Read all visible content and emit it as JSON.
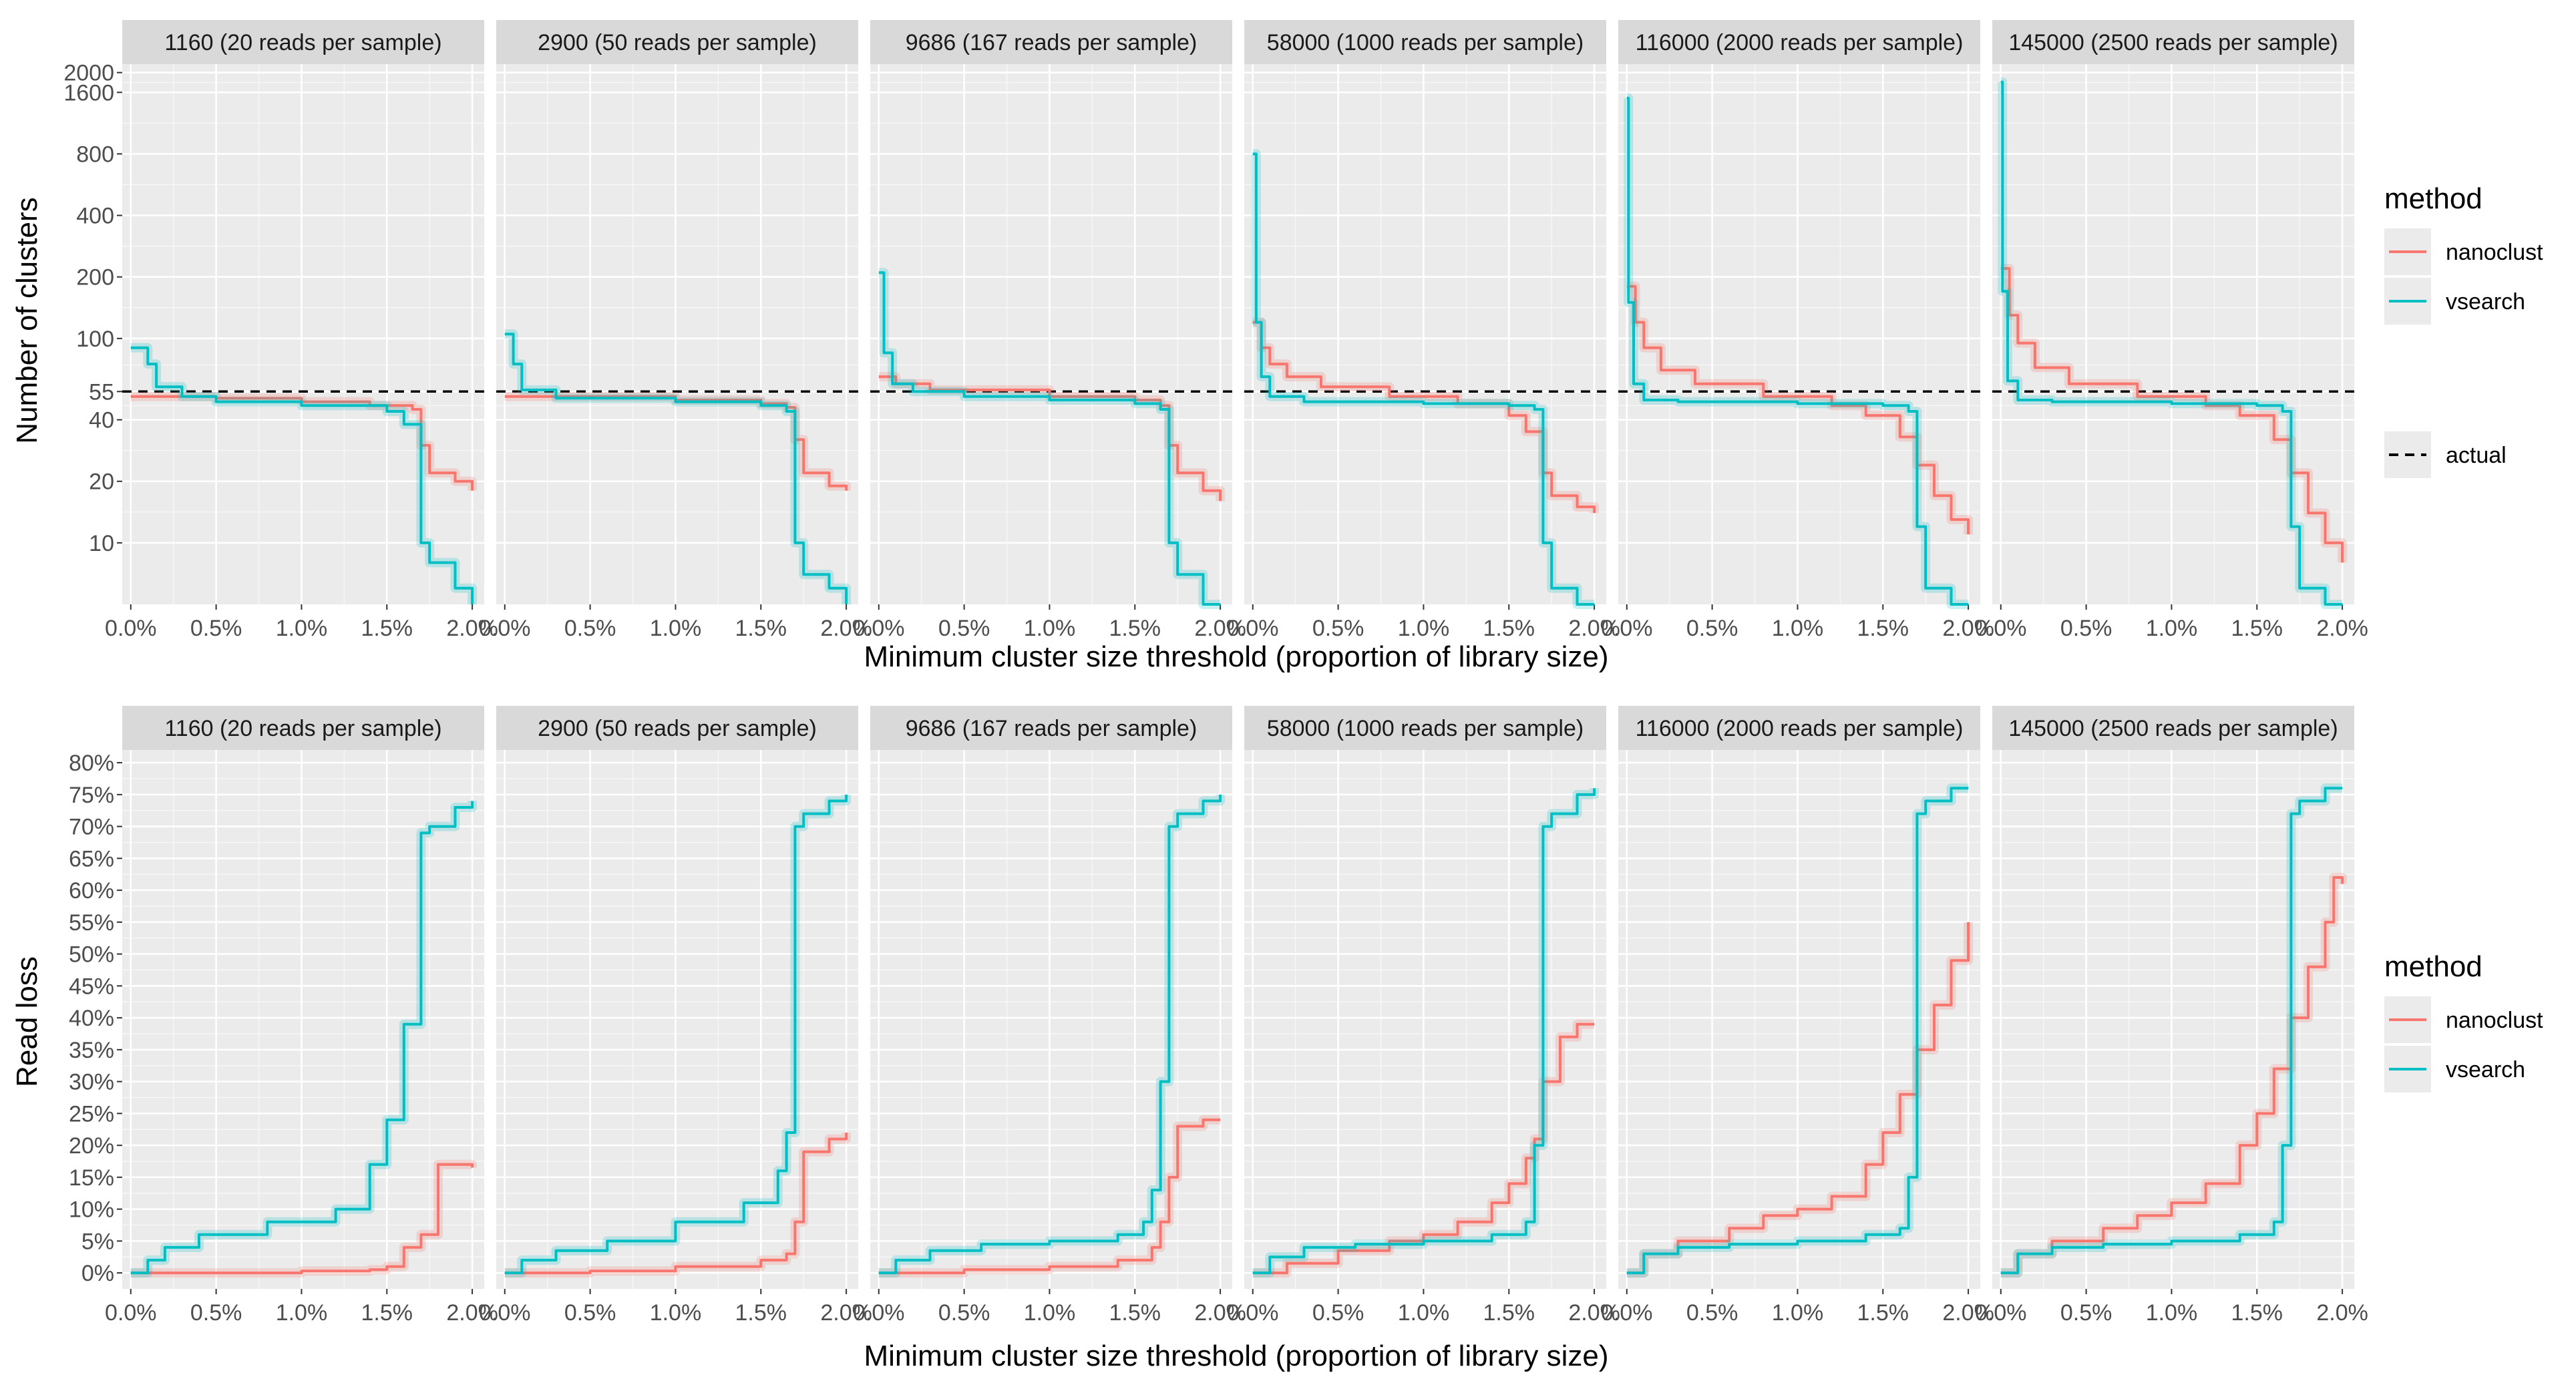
{
  "colors": {
    "nanoclust": "#F8766D",
    "vsearch": "#00BFC4",
    "panel_bg": "#EBEBEB",
    "strip_bg": "#D9D9D9",
    "grid": "#FFFFFF"
  },
  "legend": {
    "method_title": "method",
    "methods": [
      "nanoclust",
      "vsearch"
    ],
    "actual_label": "actual"
  },
  "chart_data": [
    {
      "type": "line",
      "title": "",
      "ylabel": "Number of clusters",
      "xlabel": "Minimum cluster size threshold (proportion of library size)",
      "y_scale": "log",
      "ylim": [
        5,
        2200
      ],
      "xlim": [
        -0.0005,
        0.0207
      ],
      "yticks": [
        10,
        20,
        40,
        55,
        100,
        200,
        400,
        800,
        1600,
        2000
      ],
      "ytick_labels": [
        "10",
        "20",
        "40",
        "55",
        "100",
        "200",
        "400",
        "800",
        "1600",
        "2000"
      ],
      "xticks": [
        0,
        0.005,
        0.01,
        0.015,
        0.02
      ],
      "xtick_labels": [
        "0.0%",
        "0.5%",
        "1.0%",
        "1.5%",
        "2.0%"
      ],
      "reference_line": {
        "name": "actual",
        "y": 55,
        "style": "dashed"
      },
      "facets": [
        {
          "label": "1160 (20 reads per sample)",
          "series": [
            {
              "name": "nanoclust",
              "x": [
                0,
                0.002,
                0.005,
                0.01,
                0.014,
                0.0165,
                0.017,
                0.0175,
                0.019,
                0.02
              ],
              "y": [
                52,
                52,
                51,
                49,
                47,
                45,
                30,
                22,
                20,
                18
              ]
            },
            {
              "name": "vsearch",
              "x": [
                0,
                0.001,
                0.0015,
                0.003,
                0.005,
                0.01,
                0.015,
                0.016,
                0.017,
                0.0175,
                0.019,
                0.02
              ],
              "y": [
                90,
                75,
                58,
                52,
                49,
                47,
                44,
                38,
                10,
                8,
                6,
                5
              ]
            }
          ]
        },
        {
          "label": "2900 (50 reads per sample)",
          "series": [
            {
              "name": "nanoclust",
              "x": [
                0,
                0.003,
                0.01,
                0.015,
                0.0165,
                0.017,
                0.0175,
                0.019,
                0.02
              ],
              "y": [
                52,
                52,
                50,
                48,
                46,
                32,
                22,
                19,
                18
              ]
            },
            {
              "name": "vsearch",
              "x": [
                0,
                0.0005,
                0.001,
                0.003,
                0.01,
                0.015,
                0.0165,
                0.017,
                0.0175,
                0.019,
                0.02
              ],
              "y": [
                105,
                75,
                56,
                51,
                49,
                47,
                44,
                10,
                7,
                6,
                5
              ]
            }
          ]
        },
        {
          "label": "9686 (167 reads per sample)",
          "series": [
            {
              "name": "nanoclust",
              "x": [
                0,
                0.001,
                0.003,
                0.01,
                0.015,
                0.0165,
                0.017,
                0.0175,
                0.019,
                0.02
              ],
              "y": [
                65,
                60,
                56,
                52,
                50,
                47,
                30,
                22,
                18,
                16
              ]
            },
            {
              "name": "vsearch",
              "x": [
                0,
                0.0003,
                0.0008,
                0.002,
                0.005,
                0.01,
                0.015,
                0.0165,
                0.017,
                0.0175,
                0.019,
                0.02
              ],
              "y": [
                210,
                85,
                60,
                55,
                52,
                50,
                48,
                45,
                10,
                7,
                5,
                5
              ]
            }
          ]
        },
        {
          "label": "58000 (1000 reads per sample)",
          "series": [
            {
              "name": "nanoclust",
              "x": [
                0,
                0.0005,
                0.001,
                0.002,
                0.004,
                0.008,
                0.012,
                0.015,
                0.016,
                0.017,
                0.0175,
                0.019,
                0.02
              ],
              "y": [
                120,
                90,
                75,
                65,
                58,
                52,
                48,
                42,
                35,
                22,
                17,
                15,
                14
              ]
            },
            {
              "name": "vsearch",
              "x": [
                0,
                0.0002,
                0.0005,
                0.001,
                0.003,
                0.01,
                0.015,
                0.0165,
                0.017,
                0.0175,
                0.019,
                0.02
              ],
              "y": [
                800,
                120,
                65,
                52,
                49,
                48,
                47,
                45,
                10,
                6,
                5,
                5
              ]
            }
          ]
        },
        {
          "label": "116000 (2000 reads per sample)",
          "series": [
            {
              "name": "nanoclust",
              "x": [
                0,
                0.0005,
                0.001,
                0.002,
                0.004,
                0.008,
                0.012,
                0.014,
                0.016,
                0.017,
                0.018,
                0.019,
                0.02
              ],
              "y": [
                180,
                120,
                90,
                70,
                60,
                52,
                47,
                42,
                33,
                24,
                17,
                13,
                11
              ]
            },
            {
              "name": "vsearch",
              "x": [
                0,
                0.0001,
                0.0004,
                0.001,
                0.003,
                0.01,
                0.015,
                0.0165,
                0.017,
                0.0175,
                0.019,
                0.02
              ],
              "y": [
                1500,
                150,
                60,
                50,
                49,
                48,
                47,
                44,
                12,
                6,
                5,
                5
              ]
            }
          ]
        },
        {
          "label": "145000 (2500 reads per sample)",
          "series": [
            {
              "name": "nanoclust",
              "x": [
                0,
                0.0005,
                0.001,
                0.002,
                0.004,
                0.008,
                0.012,
                0.014,
                0.016,
                0.017,
                0.018,
                0.019,
                0.02
              ],
              "y": [
                220,
                130,
                95,
                72,
                60,
                52,
                47,
                42,
                32,
                22,
                14,
                10,
                8
              ]
            },
            {
              "name": "vsearch",
              "x": [
                0,
                0.0001,
                0.0004,
                0.001,
                0.003,
                0.01,
                0.015,
                0.0165,
                0.017,
                0.0175,
                0.019,
                0.02
              ],
              "y": [
                1800,
                170,
                62,
                50,
                49,
                48,
                47,
                44,
                12,
                6,
                5,
                5
              ]
            }
          ]
        }
      ]
    },
    {
      "type": "line",
      "title": "",
      "ylabel": "Read loss",
      "xlabel": "Minimum cluster size threshold (proportion of library size)",
      "y_scale": "linear",
      "ylim": [
        -0.025,
        0.82
      ],
      "xlim": [
        -0.0005,
        0.0207
      ],
      "yticks": [
        0,
        0.05,
        0.1,
        0.15,
        0.2,
        0.25,
        0.3,
        0.35,
        0.4,
        0.45,
        0.5,
        0.55,
        0.6,
        0.65,
        0.7,
        0.75,
        0.8
      ],
      "ytick_labels": [
        "0%",
        "5%",
        "10%",
        "15%",
        "20%",
        "25%",
        "30%",
        "35%",
        "40%",
        "45%",
        "50%",
        "55%",
        "60%",
        "65%",
        "70%",
        "75%",
        "80%"
      ],
      "xticks": [
        0,
        0.005,
        0.01,
        0.015,
        0.02
      ],
      "xtick_labels": [
        "0.0%",
        "0.5%",
        "1.0%",
        "1.5%",
        "2.0%"
      ],
      "facets": [
        {
          "label": "1160 (20 reads per sample)",
          "series": [
            {
              "name": "nanoclust",
              "x": [
                0,
                0.005,
                0.01,
                0.014,
                0.015,
                0.016,
                0.017,
                0.018,
                0.019,
                0.02
              ],
              "y": [
                0,
                0,
                0.003,
                0.005,
                0.01,
                0.04,
                0.06,
                0.17,
                0.17,
                0.165
              ]
            },
            {
              "name": "vsearch",
              "x": [
                0,
                0.0005,
                0.001,
                0.002,
                0.004,
                0.008,
                0.012,
                0.014,
                0.015,
                0.016,
                0.017,
                0.0175,
                0.019,
                0.02
              ],
              "y": [
                0,
                0,
                0.02,
                0.04,
                0.06,
                0.08,
                0.1,
                0.17,
                0.24,
                0.39,
                0.69,
                0.7,
                0.73,
                0.74
              ]
            }
          ]
        },
        {
          "label": "2900 (50 reads per sample)",
          "series": [
            {
              "name": "nanoclust",
              "x": [
                0,
                0.005,
                0.01,
                0.015,
                0.0165,
                0.017,
                0.0175,
                0.019,
                0.02
              ],
              "y": [
                0,
                0.003,
                0.01,
                0.02,
                0.03,
                0.08,
                0.19,
                0.21,
                0.22
              ]
            },
            {
              "name": "vsearch",
              "x": [
                0,
                0.001,
                0.003,
                0.006,
                0.01,
                0.014,
                0.016,
                0.0165,
                0.017,
                0.0175,
                0.019,
                0.02
              ],
              "y": [
                0,
                0.02,
                0.035,
                0.05,
                0.08,
                0.11,
                0.16,
                0.22,
                0.7,
                0.72,
                0.74,
                0.75
              ]
            }
          ]
        },
        {
          "label": "9686 (167 reads per sample)",
          "series": [
            {
              "name": "nanoclust",
              "x": [
                0,
                0.005,
                0.01,
                0.014,
                0.016,
                0.0165,
                0.017,
                0.0175,
                0.019,
                0.02
              ],
              "y": [
                0,
                0.005,
                0.01,
                0.02,
                0.04,
                0.08,
                0.15,
                0.23,
                0.24,
                0.24
              ]
            },
            {
              "name": "vsearch",
              "x": [
                0,
                0.001,
                0.003,
                0.006,
                0.01,
                0.014,
                0.0155,
                0.016,
                0.0165,
                0.017,
                0.0175,
                0.019,
                0.02
              ],
              "y": [
                0,
                0.02,
                0.035,
                0.045,
                0.05,
                0.06,
                0.08,
                0.13,
                0.3,
                0.7,
                0.72,
                0.74,
                0.75
              ]
            }
          ]
        },
        {
          "label": "58000 (1000 reads per sample)",
          "series": [
            {
              "name": "nanoclust",
              "x": [
                0,
                0.002,
                0.005,
                0.008,
                0.01,
                0.012,
                0.014,
                0.015,
                0.016,
                0.0165,
                0.017,
                0.018,
                0.019,
                0.02
              ],
              "y": [
                0,
                0.015,
                0.035,
                0.05,
                0.06,
                0.08,
                0.11,
                0.14,
                0.18,
                0.21,
                0.3,
                0.37,
                0.39,
                0.39
              ]
            },
            {
              "name": "vsearch",
              "x": [
                0,
                0.001,
                0.003,
                0.006,
                0.01,
                0.014,
                0.016,
                0.0165,
                0.017,
                0.0175,
                0.019,
                0.02
              ],
              "y": [
                0,
                0.025,
                0.04,
                0.045,
                0.05,
                0.06,
                0.08,
                0.2,
                0.7,
                0.72,
                0.75,
                0.76
              ]
            }
          ]
        },
        {
          "label": "116000 (2000 reads per sample)",
          "series": [
            {
              "name": "nanoclust",
              "x": [
                0,
                0.001,
                0.003,
                0.006,
                0.008,
                0.01,
                0.012,
                0.014,
                0.015,
                0.016,
                0.017,
                0.018,
                0.019,
                0.02
              ],
              "y": [
                0,
                0.03,
                0.05,
                0.07,
                0.09,
                0.1,
                0.12,
                0.17,
                0.22,
                0.28,
                0.35,
                0.42,
                0.49,
                0.55
              ]
            },
            {
              "name": "vsearch",
              "x": [
                0,
                0.001,
                0.003,
                0.006,
                0.01,
                0.014,
                0.016,
                0.0165,
                0.017,
                0.0175,
                0.019,
                0.02
              ],
              "y": [
                0,
                0.03,
                0.04,
                0.045,
                0.05,
                0.06,
                0.07,
                0.15,
                0.72,
                0.74,
                0.76,
                0.76
              ]
            }
          ]
        },
        {
          "label": "145000 (2500 reads per sample)",
          "series": [
            {
              "name": "nanoclust",
              "x": [
                0,
                0.001,
                0.003,
                0.006,
                0.008,
                0.01,
                0.012,
                0.014,
                0.015,
                0.016,
                0.017,
                0.018,
                0.019,
                0.0195,
                0.02
              ],
              "y": [
                0,
                0.03,
                0.05,
                0.07,
                0.09,
                0.11,
                0.14,
                0.2,
                0.25,
                0.32,
                0.4,
                0.48,
                0.55,
                0.62,
                0.61
              ]
            },
            {
              "name": "vsearch",
              "x": [
                0,
                0.001,
                0.003,
                0.006,
                0.01,
                0.014,
                0.016,
                0.0165,
                0.017,
                0.0175,
                0.019,
                0.02
              ],
              "y": [
                0,
                0.03,
                0.04,
                0.045,
                0.05,
                0.06,
                0.08,
                0.2,
                0.72,
                0.74,
                0.76,
                0.76
              ]
            }
          ]
        }
      ]
    }
  ]
}
